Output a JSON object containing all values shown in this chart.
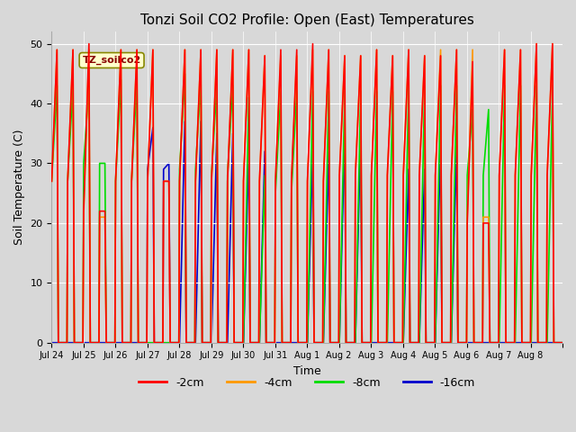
{
  "title": "Tonzi Soil CO2 Profile: Open (East) Temperatures",
  "xlabel": "Time",
  "ylabel": "Soil Temperature (C)",
  "ylim": [
    0,
    52
  ],
  "background_color": "#d8d8d8",
  "plot_bg_color": "#d8d8d8",
  "grid_color": "#ffffff",
  "series": {
    "-2cm": {
      "color": "#ff0000",
      "lw": 1.2
    },
    "-4cm": {
      "color": "#ff9900",
      "lw": 1.2
    },
    "-8cm": {
      "color": "#00dd00",
      "lw": 1.2
    },
    "-16cm": {
      "color": "#0000cc",
      "lw": 1.2
    }
  },
  "tick_labels": [
    "Jul 24",
    "Jul 25",
    "Jul 26",
    "Jul 27",
    "Jul 28",
    "Jul 29",
    "Jul 30",
    "Jul 31",
    "Aug 1",
    "Aug 2",
    "Aug 3",
    "Aug 4",
    "Aug 5",
    "Aug 6",
    "Aug 7",
    "Aug 8"
  ],
  "annotation_text": "TZ_soilco2",
  "n_days": 16,
  "pts_per_day": 48,
  "day_peaks_2cm": [
    49,
    50,
    49,
    49,
    49,
    49,
    49,
    49,
    50,
    48,
    49,
    49,
    48,
    47,
    49,
    50
  ],
  "day_peaks2_2cm": [
    49,
    22,
    49,
    27,
    49,
    49,
    48,
    49,
    49,
    48,
    48,
    48,
    49,
    20,
    49,
    50
  ],
  "day_peaks_4cm": [
    49,
    49,
    49,
    49,
    49,
    49,
    49,
    48,
    49,
    48,
    49,
    49,
    49,
    49,
    49,
    50
  ],
  "day_peaks2_4cm": [
    49,
    21,
    49,
    27,
    49,
    49,
    48,
    48,
    49,
    48,
    48,
    48,
    49,
    21,
    49,
    50
  ],
  "day_peaks_8cm": [
    43,
    43,
    44,
    0,
    45,
    43,
    41,
    42,
    42,
    42,
    42,
    43,
    43,
    39,
    43,
    43
  ],
  "day_peaks2_8cm": [
    43,
    30,
    44,
    0,
    44,
    43,
    28,
    42,
    42,
    42,
    42,
    43,
    43,
    39,
    43,
    43
  ],
  "day_peaks_16cm": [
    0,
    0,
    0,
    36,
    37,
    35,
    32,
    0,
    32,
    35,
    0,
    29,
    33,
    0,
    0,
    0
  ],
  "day_peaks2_16cm": [
    0,
    0,
    0,
    30,
    37,
    35,
    32,
    0,
    32,
    35,
    0,
    29,
    33,
    0,
    0,
    0
  ]
}
